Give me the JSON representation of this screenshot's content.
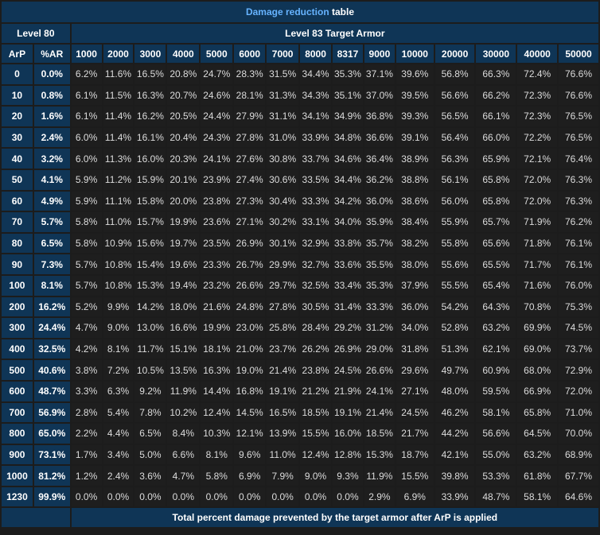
{
  "title": {
    "link": "Damage reduction",
    "rest": " table"
  },
  "left_group": "Level 80",
  "right_group": "Level 83 Target Armor",
  "arp_header": "ArP",
  "ar_header": "%AR",
  "armor_values": [
    "1000",
    "2000",
    "3000",
    "4000",
    "5000",
    "6000",
    "7000",
    "8000",
    "8317",
    "9000",
    "10000",
    "20000",
    "30000",
    "40000",
    "50000"
  ],
  "rows": [
    {
      "arp": "0",
      "ar": "0.0%",
      "cells": [
        "6.2%",
        "11.6%",
        "16.5%",
        "20.8%",
        "24.7%",
        "28.3%",
        "31.5%",
        "34.4%",
        "35.3%",
        "37.1%",
        "39.6%",
        "56.8%",
        "66.3%",
        "72.4%",
        "76.6%"
      ]
    },
    {
      "arp": "10",
      "ar": "0.8%",
      "cells": [
        "6.1%",
        "11.5%",
        "16.3%",
        "20.7%",
        "24.6%",
        "28.1%",
        "31.3%",
        "34.3%",
        "35.1%",
        "37.0%",
        "39.5%",
        "56.6%",
        "66.2%",
        "72.3%",
        "76.6%"
      ]
    },
    {
      "arp": "20",
      "ar": "1.6%",
      "cells": [
        "6.1%",
        "11.4%",
        "16.2%",
        "20.5%",
        "24.4%",
        "27.9%",
        "31.1%",
        "34.1%",
        "34.9%",
        "36.8%",
        "39.3%",
        "56.5%",
        "66.1%",
        "72.3%",
        "76.5%"
      ]
    },
    {
      "arp": "30",
      "ar": "2.4%",
      "cells": [
        "6.0%",
        "11.4%",
        "16.1%",
        "20.4%",
        "24.3%",
        "27.8%",
        "31.0%",
        "33.9%",
        "34.8%",
        "36.6%",
        "39.1%",
        "56.4%",
        "66.0%",
        "72.2%",
        "76.5%"
      ]
    },
    {
      "arp": "40",
      "ar": "3.2%",
      "cells": [
        "6.0%",
        "11.3%",
        "16.0%",
        "20.3%",
        "24.1%",
        "27.6%",
        "30.8%",
        "33.7%",
        "34.6%",
        "36.4%",
        "38.9%",
        "56.3%",
        "65.9%",
        "72.1%",
        "76.4%"
      ]
    },
    {
      "arp": "50",
      "ar": "4.1%",
      "cells": [
        "5.9%",
        "11.2%",
        "15.9%",
        "20.1%",
        "23.9%",
        "27.4%",
        "30.6%",
        "33.5%",
        "34.4%",
        "36.2%",
        "38.8%",
        "56.1%",
        "65.8%",
        "72.0%",
        "76.3%"
      ]
    },
    {
      "arp": "60",
      "ar": "4.9%",
      "cells": [
        "5.9%",
        "11.1%",
        "15.8%",
        "20.0%",
        "23.8%",
        "27.3%",
        "30.4%",
        "33.3%",
        "34.2%",
        "36.0%",
        "38.6%",
        "56.0%",
        "65.8%",
        "72.0%",
        "76.3%"
      ]
    },
    {
      "arp": "70",
      "ar": "5.7%",
      "cells": [
        "5.8%",
        "11.0%",
        "15.7%",
        "19.9%",
        "23.6%",
        "27.1%",
        "30.2%",
        "33.1%",
        "34.0%",
        "35.9%",
        "38.4%",
        "55.9%",
        "65.7%",
        "71.9%",
        "76.2%"
      ]
    },
    {
      "arp": "80",
      "ar": "6.5%",
      "cells": [
        "5.8%",
        "10.9%",
        "15.6%",
        "19.7%",
        "23.5%",
        "26.9%",
        "30.1%",
        "32.9%",
        "33.8%",
        "35.7%",
        "38.2%",
        "55.8%",
        "65.6%",
        "71.8%",
        "76.1%"
      ]
    },
    {
      "arp": "90",
      "ar": "7.3%",
      "cells": [
        "5.7%",
        "10.8%",
        "15.4%",
        "19.6%",
        "23.3%",
        "26.7%",
        "29.9%",
        "32.7%",
        "33.6%",
        "35.5%",
        "38.0%",
        "55.6%",
        "65.5%",
        "71.7%",
        "76.1%"
      ]
    },
    {
      "arp": "100",
      "ar": "8.1%",
      "cells": [
        "5.7%",
        "10.8%",
        "15.3%",
        "19.4%",
        "23.2%",
        "26.6%",
        "29.7%",
        "32.5%",
        "33.4%",
        "35.3%",
        "37.9%",
        "55.5%",
        "65.4%",
        "71.6%",
        "76.0%"
      ]
    },
    {
      "arp": "200",
      "ar": "16.2%",
      "cells": [
        "5.2%",
        "9.9%",
        "14.2%",
        "18.0%",
        "21.6%",
        "24.8%",
        "27.8%",
        "30.5%",
        "31.4%",
        "33.3%",
        "36.0%",
        "54.2%",
        "64.3%",
        "70.8%",
        "75.3%"
      ]
    },
    {
      "arp": "300",
      "ar": "24.4%",
      "cells": [
        "4.7%",
        "9.0%",
        "13.0%",
        "16.6%",
        "19.9%",
        "23.0%",
        "25.8%",
        "28.4%",
        "29.2%",
        "31.2%",
        "34.0%",
        "52.8%",
        "63.2%",
        "69.9%",
        "74.5%"
      ]
    },
    {
      "arp": "400",
      "ar": "32.5%",
      "cells": [
        "4.2%",
        "8.1%",
        "11.7%",
        "15.1%",
        "18.1%",
        "21.0%",
        "23.7%",
        "26.2%",
        "26.9%",
        "29.0%",
        "31.8%",
        "51.3%",
        "62.1%",
        "69.0%",
        "73.7%"
      ]
    },
    {
      "arp": "500",
      "ar": "40.6%",
      "cells": [
        "3.8%",
        "7.2%",
        "10.5%",
        "13.5%",
        "16.3%",
        "19.0%",
        "21.4%",
        "23.8%",
        "24.5%",
        "26.6%",
        "29.6%",
        "49.7%",
        "60.9%",
        "68.0%",
        "72.9%"
      ]
    },
    {
      "arp": "600",
      "ar": "48.7%",
      "cells": [
        "3.3%",
        "6.3%",
        "9.2%",
        "11.9%",
        "14.4%",
        "16.8%",
        "19.1%",
        "21.2%",
        "21.9%",
        "24.1%",
        "27.1%",
        "48.0%",
        "59.5%",
        "66.9%",
        "72.0%"
      ]
    },
    {
      "arp": "700",
      "ar": "56.9%",
      "cells": [
        "2.8%",
        "5.4%",
        "7.8%",
        "10.2%",
        "12.4%",
        "14.5%",
        "16.5%",
        "18.5%",
        "19.1%",
        "21.4%",
        "24.5%",
        "46.2%",
        "58.1%",
        "65.8%",
        "71.0%"
      ]
    },
    {
      "arp": "800",
      "ar": "65.0%",
      "cells": [
        "2.2%",
        "4.4%",
        "6.5%",
        "8.4%",
        "10.3%",
        "12.1%",
        "13.9%",
        "15.5%",
        "16.0%",
        "18.5%",
        "21.7%",
        "44.2%",
        "56.6%",
        "64.5%",
        "70.0%"
      ]
    },
    {
      "arp": "900",
      "ar": "73.1%",
      "cells": [
        "1.7%",
        "3.4%",
        "5.0%",
        "6.6%",
        "8.1%",
        "9.6%",
        "11.0%",
        "12.4%",
        "12.8%",
        "15.3%",
        "18.7%",
        "42.1%",
        "55.0%",
        "63.2%",
        "68.9%"
      ]
    },
    {
      "arp": "1000",
      "ar": "81.2%",
      "cells": [
        "1.2%",
        "2.4%",
        "3.6%",
        "4.7%",
        "5.8%",
        "6.9%",
        "7.9%",
        "9.0%",
        "9.3%",
        "11.9%",
        "15.5%",
        "39.8%",
        "53.3%",
        "61.8%",
        "67.7%"
      ]
    },
    {
      "arp": "1230",
      "ar": "99.9%",
      "cells": [
        "0.0%",
        "0.0%",
        "0.0%",
        "0.0%",
        "0.0%",
        "0.0%",
        "0.0%",
        "0.0%",
        "0.0%",
        "2.9%",
        "6.9%",
        "33.9%",
        "48.7%",
        "58.1%",
        "64.6%"
      ]
    }
  ],
  "footer": "Total percent damage prevented by the target armor after ArP is applied"
}
